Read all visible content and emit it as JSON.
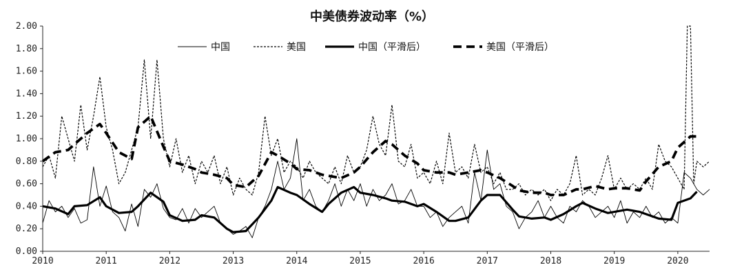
{
  "chart_data": {
    "type": "line",
    "title": "中美债券波动率（%）",
    "xlabel": "",
    "ylabel": "",
    "x_tick_labels": [
      "2010",
      "2011",
      "2012",
      "2013",
      "2014",
      "2015",
      "2016",
      "2017",
      "2018",
      "2019",
      "2020"
    ],
    "y_tick_labels": [
      "0.00",
      "0.20",
      "0.40",
      "0.60",
      "0.80",
      "1.00",
      "1.20",
      "1.40",
      "1.60",
      "1.80",
      "2.00"
    ],
    "xlim": [
      2010.0,
      2020.5
    ],
    "ylim": [
      0.0,
      2.0
    ],
    "grid": false,
    "legend_position": "top",
    "series": [
      {
        "name": "中国",
        "style": "thin-solid",
        "x": [
          2010.0,
          2010.1,
          2010.2,
          2010.3,
          2010.4,
          2010.5,
          2010.6,
          2010.7,
          2010.8,
          2010.9,
          2011.0,
          2011.1,
          2011.2,
          2011.3,
          2011.4,
          2011.5,
          2011.6,
          2011.7,
          2011.8,
          2011.9,
          2012.0,
          2012.1,
          2012.2,
          2012.3,
          2012.4,
          2012.5,
          2012.6,
          2012.7,
          2012.8,
          2012.9,
          2013.0,
          2013.1,
          2013.2,
          2013.3,
          2013.4,
          2013.5,
          2013.6,
          2013.7,
          2013.8,
          2013.9,
          2014.0,
          2014.1,
          2014.2,
          2014.3,
          2014.4,
          2014.5,
          2014.6,
          2014.7,
          2014.8,
          2014.9,
          2015.0,
          2015.1,
          2015.2,
          2015.3,
          2015.4,
          2015.5,
          2015.6,
          2015.7,
          2015.8,
          2015.9,
          2016.0,
          2016.1,
          2016.2,
          2016.3,
          2016.4,
          2016.5,
          2016.6,
          2016.7,
          2016.8,
          2016.9,
          2017.0,
          2017.1,
          2017.2,
          2017.3,
          2017.4,
          2017.5,
          2017.6,
          2017.7,
          2017.8,
          2017.9,
          2018.0,
          2018.1,
          2018.2,
          2018.3,
          2018.4,
          2018.5,
          2018.6,
          2018.7,
          2018.8,
          2018.9,
          2019.0,
          2019.1,
          2019.2,
          2019.3,
          2019.4,
          2019.5,
          2019.6,
          2019.7,
          2019.8,
          2019.9,
          2020.0,
          2020.1,
          2020.2,
          2020.3,
          2020.4,
          2020.5
        ],
        "y": [
          0.25,
          0.45,
          0.35,
          0.4,
          0.3,
          0.38,
          0.25,
          0.28,
          0.75,
          0.4,
          0.58,
          0.35,
          0.3,
          0.18,
          0.42,
          0.22,
          0.55,
          0.48,
          0.6,
          0.38,
          0.3,
          0.28,
          0.38,
          0.25,
          0.38,
          0.3,
          0.35,
          0.4,
          0.25,
          0.2,
          0.15,
          0.18,
          0.22,
          0.12,
          0.3,
          0.4,
          0.55,
          0.8,
          0.55,
          0.65,
          1.0,
          0.45,
          0.55,
          0.4,
          0.35,
          0.45,
          0.6,
          0.4,
          0.55,
          0.45,
          0.6,
          0.4,
          0.55,
          0.45,
          0.5,
          0.6,
          0.42,
          0.45,
          0.55,
          0.4,
          0.4,
          0.3,
          0.35,
          0.22,
          0.3,
          0.35,
          0.4,
          0.25,
          0.7,
          0.45,
          0.9,
          0.55,
          0.6,
          0.4,
          0.35,
          0.2,
          0.3,
          0.35,
          0.45,
          0.3,
          0.4,
          0.3,
          0.25,
          0.4,
          0.35,
          0.45,
          0.4,
          0.3,
          0.35,
          0.4,
          0.3,
          0.45,
          0.25,
          0.35,
          0.3,
          0.4,
          0.3,
          0.35,
          0.25,
          0.3,
          0.25,
          0.7,
          0.65,
          0.55,
          0.5,
          0.55
        ]
      },
      {
        "name": "美国",
        "style": "thin-dashed",
        "x": [
          2010.0,
          2010.1,
          2010.2,
          2010.3,
          2010.4,
          2010.5,
          2010.6,
          2010.7,
          2010.8,
          2010.9,
          2011.0,
          2011.1,
          2011.2,
          2011.3,
          2011.4,
          2011.5,
          2011.6,
          2011.7,
          2011.8,
          2011.9,
          2012.0,
          2012.1,
          2012.2,
          2012.3,
          2012.4,
          2012.5,
          2012.6,
          2012.7,
          2012.8,
          2012.9,
          2013.0,
          2013.1,
          2013.2,
          2013.3,
          2013.4,
          2013.5,
          2013.6,
          2013.7,
          2013.8,
          2013.9,
          2014.0,
          2014.1,
          2014.2,
          2014.3,
          2014.4,
          2014.5,
          2014.6,
          2014.7,
          2014.8,
          2014.9,
          2015.0,
          2015.1,
          2015.2,
          2015.3,
          2015.4,
          2015.5,
          2015.6,
          2015.7,
          2015.8,
          2015.9,
          2016.0,
          2016.1,
          2016.2,
          2016.3,
          2016.4,
          2016.5,
          2016.6,
          2016.7,
          2016.8,
          2016.9,
          2017.0,
          2017.1,
          2017.2,
          2017.3,
          2017.4,
          2017.5,
          2017.6,
          2017.7,
          2017.8,
          2017.9,
          2018.0,
          2018.1,
          2018.2,
          2018.3,
          2018.4,
          2018.5,
          2018.6,
          2018.7,
          2018.8,
          2018.9,
          2019.0,
          2019.1,
          2019.2,
          2019.3,
          2019.4,
          2019.5,
          2019.6,
          2019.7,
          2019.8,
          2019.9,
          2020.0,
          2020.1,
          2020.15,
          2020.2,
          2020.25,
          2020.3,
          2020.4,
          2020.5
        ],
        "y": [
          0.75,
          0.85,
          0.65,
          1.2,
          1.0,
          0.8,
          1.3,
          0.9,
          1.2,
          1.55,
          1.1,
          0.9,
          0.6,
          0.7,
          0.9,
          1.1,
          1.7,
          1.0,
          1.7,
          1.0,
          0.75,
          1.0,
          0.7,
          0.85,
          0.6,
          0.8,
          0.7,
          0.85,
          0.6,
          0.75,
          0.5,
          0.65,
          0.55,
          0.5,
          0.7,
          1.2,
          0.85,
          1.0,
          0.7,
          0.8,
          0.75,
          0.65,
          0.8,
          0.7,
          0.65,
          0.6,
          0.75,
          0.6,
          0.85,
          0.7,
          0.75,
          0.9,
          1.2,
          0.95,
          0.85,
          1.3,
          0.8,
          0.75,
          0.95,
          0.65,
          0.7,
          0.6,
          0.8,
          0.6,
          1.05,
          0.7,
          0.75,
          0.65,
          0.95,
          0.7,
          0.75,
          0.6,
          0.7,
          0.55,
          0.55,
          0.6,
          0.5,
          0.55,
          0.5,
          0.55,
          0.45,
          0.55,
          0.5,
          0.6,
          0.85,
          0.5,
          0.55,
          0.5,
          0.65,
          0.85,
          0.55,
          0.65,
          0.55,
          0.6,
          0.55,
          0.65,
          0.55,
          0.95,
          0.8,
          0.75,
          0.65,
          0.55,
          2.0,
          2.0,
          0.6,
          0.8,
          0.75,
          0.8
        ]
      },
      {
        "name": "中国（平滑后）",
        "style": "thick-solid",
        "x": [
          2010.0,
          2010.2,
          2010.4,
          2010.5,
          2010.7,
          2010.9,
          2011.0,
          2011.2,
          2011.4,
          2011.5,
          2011.7,
          2011.9,
          2012.0,
          2012.2,
          2012.4,
          2012.5,
          2012.7,
          2012.9,
          2013.0,
          2013.2,
          2013.4,
          2013.6,
          2013.7,
          2013.9,
          2014.0,
          2014.2,
          2014.4,
          2014.5,
          2014.7,
          2014.9,
          2015.0,
          2015.2,
          2015.4,
          2015.5,
          2015.7,
          2015.9,
          2016.0,
          2016.2,
          2016.4,
          2016.5,
          2016.7,
          2016.9,
          2017.0,
          2017.2,
          2017.4,
          2017.5,
          2017.7,
          2017.9,
          2018.0,
          2018.2,
          2018.4,
          2018.5,
          2018.7,
          2018.9,
          2019.0,
          2019.2,
          2019.4,
          2019.5,
          2019.7,
          2019.9,
          2020.0,
          2020.2,
          2020.3
        ],
        "y": [
          0.4,
          0.38,
          0.33,
          0.4,
          0.41,
          0.48,
          0.4,
          0.34,
          0.35,
          0.4,
          0.52,
          0.44,
          0.32,
          0.27,
          0.28,
          0.32,
          0.3,
          0.2,
          0.17,
          0.18,
          0.3,
          0.45,
          0.57,
          0.52,
          0.5,
          0.42,
          0.35,
          0.42,
          0.52,
          0.57,
          0.52,
          0.5,
          0.47,
          0.45,
          0.44,
          0.4,
          0.42,
          0.35,
          0.27,
          0.27,
          0.3,
          0.45,
          0.5,
          0.5,
          0.37,
          0.31,
          0.29,
          0.3,
          0.28,
          0.33,
          0.4,
          0.43,
          0.38,
          0.34,
          0.35,
          0.37,
          0.35,
          0.33,
          0.29,
          0.28,
          0.43,
          0.47,
          0.53
        ]
      },
      {
        "name": "美国（平滑后）",
        "style": "thick-dashed",
        "x": [
          2010.0,
          2010.2,
          2010.4,
          2010.5,
          2010.7,
          2010.9,
          2011.0,
          2011.2,
          2011.4,
          2011.5,
          2011.7,
          2011.9,
          2012.0,
          2012.2,
          2012.4,
          2012.5,
          2012.7,
          2012.9,
          2013.0,
          2013.2,
          2013.4,
          2013.6,
          2013.7,
          2013.9,
          2014.0,
          2014.2,
          2014.4,
          2014.5,
          2014.7,
          2014.9,
          2015.0,
          2015.2,
          2015.4,
          2015.5,
          2015.7,
          2015.9,
          2016.0,
          2016.2,
          2016.4,
          2016.5,
          2016.7,
          2016.9,
          2017.0,
          2017.2,
          2017.4,
          2017.5,
          2017.7,
          2017.9,
          2018.0,
          2018.2,
          2018.4,
          2018.5,
          2018.7,
          2018.9,
          2019.0,
          2019.2,
          2019.4,
          2019.5,
          2019.7,
          2019.9,
          2020.0,
          2020.2,
          2020.3
        ],
        "y": [
          0.8,
          0.88,
          0.9,
          0.95,
          1.05,
          1.13,
          1.05,
          0.88,
          0.82,
          1.1,
          1.2,
          0.93,
          0.8,
          0.77,
          0.73,
          0.7,
          0.68,
          0.65,
          0.59,
          0.57,
          0.67,
          0.88,
          0.85,
          0.78,
          0.73,
          0.72,
          0.68,
          0.67,
          0.65,
          0.7,
          0.75,
          0.88,
          0.98,
          0.95,
          0.85,
          0.78,
          0.72,
          0.7,
          0.7,
          0.68,
          0.7,
          0.72,
          0.7,
          0.65,
          0.58,
          0.54,
          0.52,
          0.52,
          0.5,
          0.5,
          0.55,
          0.55,
          0.58,
          0.55,
          0.56,
          0.56,
          0.54,
          0.62,
          0.75,
          0.8,
          0.92,
          1.02,
          1.02
        ]
      }
    ]
  }
}
